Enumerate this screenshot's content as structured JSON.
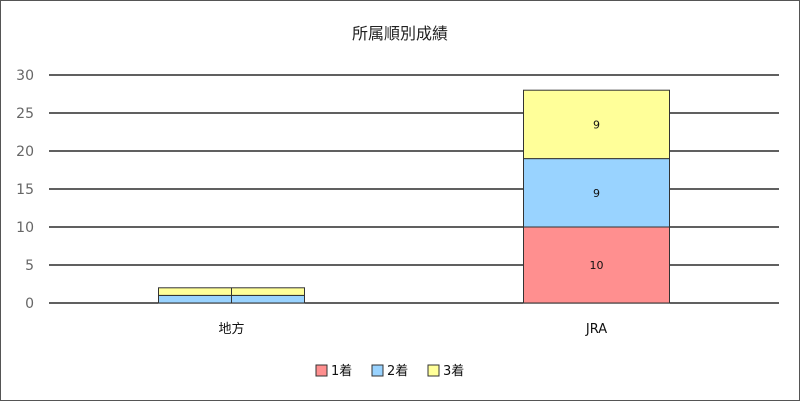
{
  "chart_data": {
    "type": "bar",
    "stacked": true,
    "title": "所属順別成績",
    "categories": [
      "地方",
      "JRA"
    ],
    "series": [
      {
        "name": "1着",
        "values": [
          0,
          10
        ],
        "color": "#ff8f8f"
      },
      {
        "name": "2着",
        "values": [
          1,
          9
        ],
        "color": "#99d3ff"
      },
      {
        "name": "3着",
        "values": [
          1,
          9
        ],
        "color": "#ffff99"
      }
    ],
    "ylim": [
      0,
      30
    ],
    "yticks": [
      0,
      5,
      10,
      15,
      20,
      25,
      30
    ],
    "grid": true,
    "legend": "bottom",
    "xlabel": "",
    "ylabel": ""
  }
}
